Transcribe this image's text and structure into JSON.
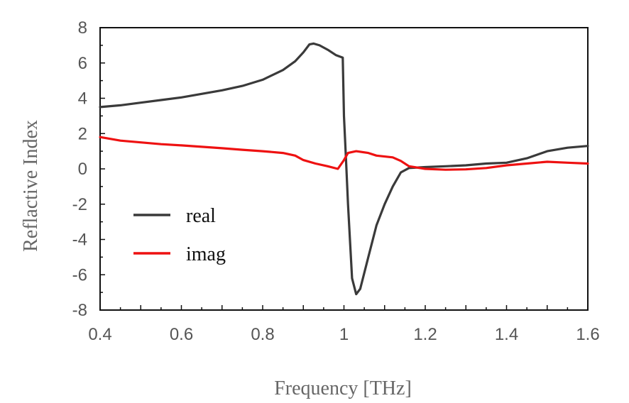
{
  "chart_data": {
    "type": "line",
    "title": "",
    "xlabel": "Frequency [THz]",
    "ylabel": "Reflactive Index",
    "xlim": [
      0.4,
      1.6
    ],
    "ylim": [
      -8,
      8
    ],
    "x_ticks": [
      "0.4",
      "0.6",
      "0.8",
      "1",
      "1.2",
      "1.4",
      "1.6"
    ],
    "y_ticks": [
      "8",
      "6",
      "4",
      "2",
      "0",
      "-2",
      "-4",
      "-6",
      "-8"
    ],
    "x_tick_values": [
      0.4,
      0.6,
      0.8,
      1.0,
      1.2,
      1.4,
      1.6
    ],
    "y_tick_values": [
      8,
      6,
      4,
      2,
      0,
      -2,
      -4,
      -6,
      -8
    ],
    "grid": false,
    "legend_position": "bottom-left",
    "series": [
      {
        "name": "real",
        "color": "#3a3a3a",
        "points": [
          [
            0.4,
            3.5
          ],
          [
            0.45,
            3.6
          ],
          [
            0.5,
            3.75
          ],
          [
            0.55,
            3.9
          ],
          [
            0.6,
            4.05
          ],
          [
            0.65,
            4.25
          ],
          [
            0.7,
            4.45
          ],
          [
            0.75,
            4.7
          ],
          [
            0.8,
            5.05
          ],
          [
            0.85,
            5.6
          ],
          [
            0.88,
            6.1
          ],
          [
            0.9,
            6.6
          ],
          [
            0.915,
            7.05
          ],
          [
            0.925,
            7.1
          ],
          [
            0.94,
            7.0
          ],
          [
            0.96,
            6.75
          ],
          [
            0.98,
            6.45
          ],
          [
            0.997,
            6.3
          ],
          [
            1.0,
            3.0
          ],
          [
            1.005,
            0.5
          ],
          [
            1.01,
            -2.0
          ],
          [
            1.02,
            -6.2
          ],
          [
            1.03,
            -7.1
          ],
          [
            1.04,
            -6.8
          ],
          [
            1.06,
            -5.0
          ],
          [
            1.08,
            -3.2
          ],
          [
            1.1,
            -2.0
          ],
          [
            1.12,
            -1.0
          ],
          [
            1.14,
            -0.2
          ],
          [
            1.16,
            0.05
          ],
          [
            1.2,
            0.1
          ],
          [
            1.25,
            0.15
          ],
          [
            1.3,
            0.2
          ],
          [
            1.35,
            0.3
          ],
          [
            1.4,
            0.35
          ],
          [
            1.45,
            0.6
          ],
          [
            1.5,
            1.0
          ],
          [
            1.55,
            1.2
          ],
          [
            1.6,
            1.3
          ]
        ]
      },
      {
        "name": "imag",
        "color": "#ee1111",
        "points": [
          [
            0.4,
            1.8
          ],
          [
            0.45,
            1.6
          ],
          [
            0.5,
            1.5
          ],
          [
            0.55,
            1.4
          ],
          [
            0.6,
            1.33
          ],
          [
            0.65,
            1.25
          ],
          [
            0.7,
            1.17
          ],
          [
            0.75,
            1.08
          ],
          [
            0.8,
            1.0
          ],
          [
            0.85,
            0.9
          ],
          [
            0.88,
            0.75
          ],
          [
            0.9,
            0.5
          ],
          [
            0.93,
            0.3
          ],
          [
            0.96,
            0.15
          ],
          [
            0.985,
            0.0
          ],
          [
            1.0,
            0.5
          ],
          [
            1.01,
            0.9
          ],
          [
            1.03,
            1.0
          ],
          [
            1.06,
            0.9
          ],
          [
            1.08,
            0.75
          ],
          [
            1.12,
            0.65
          ],
          [
            1.14,
            0.45
          ],
          [
            1.16,
            0.15
          ],
          [
            1.2,
            0.0
          ],
          [
            1.25,
            -0.05
          ],
          [
            1.3,
            -0.03
          ],
          [
            1.35,
            0.05
          ],
          [
            1.4,
            0.2
          ],
          [
            1.45,
            0.3
          ],
          [
            1.5,
            0.4
          ],
          [
            1.55,
            0.35
          ],
          [
            1.6,
            0.3
          ]
        ]
      }
    ]
  }
}
